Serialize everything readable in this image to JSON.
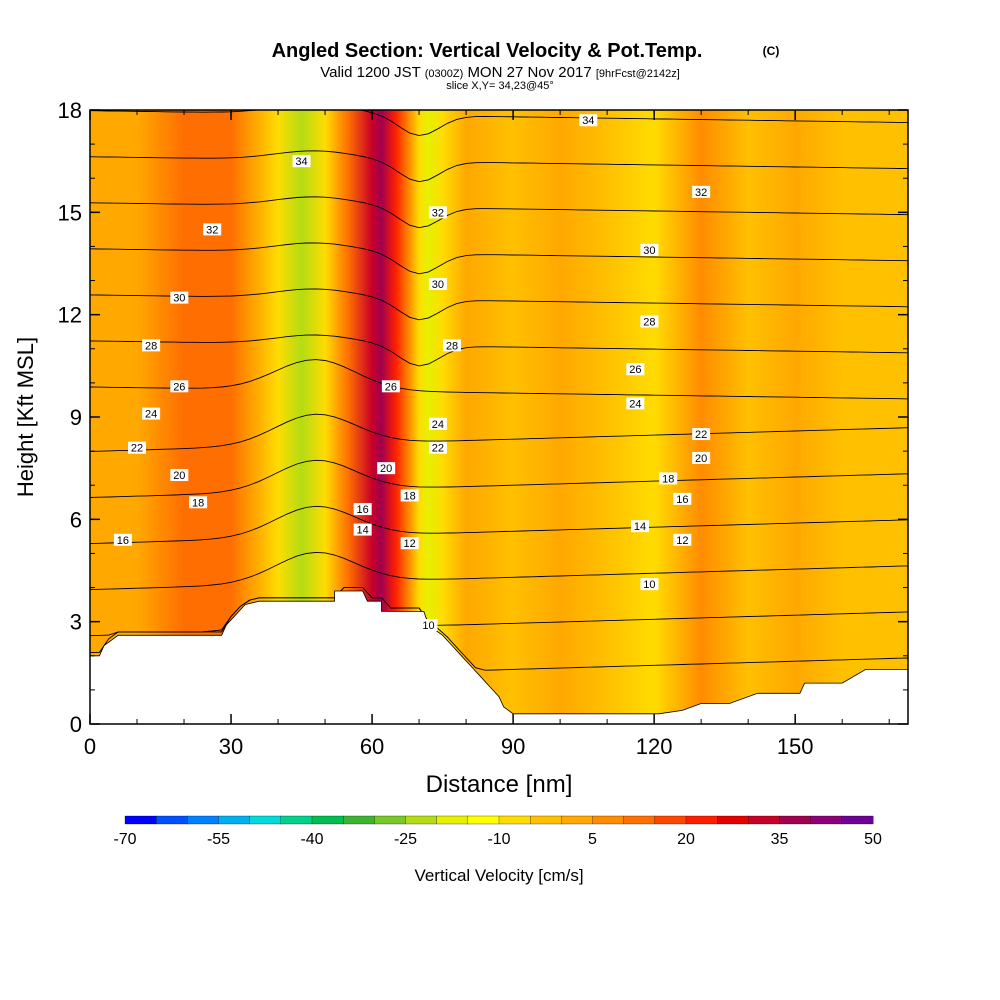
{
  "chart_data": {
    "type": "heatmap",
    "title": "Angled Section: Vertical Velocity & Pot.Temp.",
    "title_unit": "(C)",
    "subtitle": {
      "valid_prefix": "Valid 1200 JST",
      "zulu": "(0300Z)",
      "date": "MON 27 Nov 2017",
      "forecast": "[9hrFcst@2142z]"
    },
    "slice_text": "slice X,Y= 34,23@45°",
    "xlabel": "Distance [nm]",
    "ylabel": "Height [Kft MSL]",
    "xlim": [
      0,
      174
    ],
    "ylim": [
      0,
      18
    ],
    "xticks": [
      "0",
      "30",
      "60",
      "90",
      "120",
      "150"
    ],
    "yticks": [
      "0",
      "3",
      "6",
      "9",
      "12",
      "15",
      "18"
    ],
    "colorbar": {
      "label": "Vertical Velocity [cm/s]",
      "tick_labels": [
        "-70",
        "-55",
        "-40",
        "-25",
        "-10",
        "5",
        "20",
        "35",
        "50"
      ],
      "colors": [
        "#0000ff",
        "#0050ff",
        "#0082ff",
        "#00b0f0",
        "#00dcdc",
        "#00d28c",
        "#00be50",
        "#3cb432",
        "#78c828",
        "#b4dc14",
        "#e6f000",
        "#ffff00",
        "#ffdc00",
        "#ffc000",
        "#ffa800",
        "#ff8c00",
        "#ff6e00",
        "#ff4600",
        "#ff1e00",
        "#e60000",
        "#c80028",
        "#a00050",
        "#8c0078",
        "#6e0096"
      ]
    },
    "terrain_kft": [
      [
        0,
        2.0
      ],
      [
        2,
        2.0
      ],
      [
        3,
        2.3
      ],
      [
        6,
        2.6
      ],
      [
        28,
        2.6
      ],
      [
        29,
        2.9
      ],
      [
        31,
        3.2
      ],
      [
        33,
        3.5
      ],
      [
        36,
        3.6
      ],
      [
        52,
        3.6
      ],
      [
        52,
        3.9
      ],
      [
        58,
        3.9
      ],
      [
        59,
        3.6
      ],
      [
        62,
        3.6
      ],
      [
        62,
        3.3
      ],
      [
        71,
        3.3
      ],
      [
        72,
        2.9
      ],
      [
        75,
        2.6
      ],
      [
        77,
        2.3
      ],
      [
        79,
        2.0
      ],
      [
        81,
        1.7
      ],
      [
        83,
        1.4
      ],
      [
        85,
        1.1
      ],
      [
        87,
        0.8
      ],
      [
        88,
        0.5
      ],
      [
        90,
        0.3
      ],
      [
        121,
        0.3
      ],
      [
        126,
        0.4
      ],
      [
        130,
        0.6
      ],
      [
        136,
        0.6
      ],
      [
        142,
        0.9
      ],
      [
        151,
        0.9
      ],
      [
        152,
        1.2
      ],
      [
        160,
        1.2
      ],
      [
        165,
        1.6
      ],
      [
        174,
        1.6
      ]
    ],
    "vertical_velocity_cm_s": {
      "columns_nm": [
        0,
        10,
        20,
        30,
        40,
        45,
        50,
        55,
        60,
        62,
        65,
        70,
        72,
        75,
        80,
        90,
        100,
        110,
        120,
        130,
        140,
        150,
        160,
        174
      ],
      "values": [
        0,
        2,
        14,
        10,
        -6,
        -24,
        -10,
        12,
        30,
        38,
        24,
        -6,
        -20,
        -8,
        2,
        -4,
        3,
        -2,
        -6,
        5,
        -4,
        2,
        -3,
        -2
      ]
    },
    "contour_levels_C": [
      10,
      12,
      14,
      16,
      18,
      20,
      22,
      24,
      26,
      28,
      30,
      32,
      34
    ],
    "contour_labels": [
      {
        "text": "34",
        "x": 45,
        "y": 16.5
      },
      {
        "text": "34",
        "x": 106,
        "y": 17.7
      },
      {
        "text": "32",
        "x": 26,
        "y": 14.5
      },
      {
        "text": "32",
        "x": 74,
        "y": 15.0
      },
      {
        "text": "32",
        "x": 130,
        "y": 15.6
      },
      {
        "text": "30",
        "x": 19,
        "y": 12.5
      },
      {
        "text": "30",
        "x": 74,
        "y": 12.9
      },
      {
        "text": "30",
        "x": 119,
        "y": 13.9
      },
      {
        "text": "28",
        "x": 13,
        "y": 11.1
      },
      {
        "text": "28",
        "x": 77,
        "y": 11.1
      },
      {
        "text": "28",
        "x": 119,
        "y": 11.8
      },
      {
        "text": "26",
        "x": 19,
        "y": 9.9
      },
      {
        "text": "26",
        "x": 64,
        "y": 9.9
      },
      {
        "text": "26",
        "x": 116,
        "y": 10.4
      },
      {
        "text": "24",
        "x": 13,
        "y": 9.1
      },
      {
        "text": "24",
        "x": 74,
        "y": 8.8
      },
      {
        "text": "24",
        "x": 116,
        "y": 9.4
      },
      {
        "text": "22",
        "x": 10,
        "y": 8.1
      },
      {
        "text": "22",
        "x": 74,
        "y": 8.1
      },
      {
        "text": "22",
        "x": 130,
        "y": 8.5
      },
      {
        "text": "20",
        "x": 19,
        "y": 7.3
      },
      {
        "text": "20",
        "x": 63,
        "y": 7.5
      },
      {
        "text": "20",
        "x": 130,
        "y": 7.8
      },
      {
        "text": "18",
        "x": 23,
        "y": 6.5
      },
      {
        "text": "18",
        "x": 68,
        "y": 6.7
      },
      {
        "text": "18",
        "x": 123,
        "y": 7.2
      },
      {
        "text": "16",
        "x": 7,
        "y": 5.4
      },
      {
        "text": "16",
        "x": 58,
        "y": 6.3
      },
      {
        "text": "16",
        "x": 126,
        "y": 6.6
      },
      {
        "text": "14",
        "x": 58,
        "y": 5.7
      },
      {
        "text": "14",
        "x": 117,
        "y": 5.8
      },
      {
        "text": "12",
        "x": 68,
        "y": 5.3
      },
      {
        "text": "12",
        "x": 126,
        "y": 5.4
      },
      {
        "text": "10",
        "x": 119,
        "y": 4.1
      },
      {
        "text": "10",
        "x": 72,
        "y": 2.9
      }
    ],
    "grid": false
  }
}
